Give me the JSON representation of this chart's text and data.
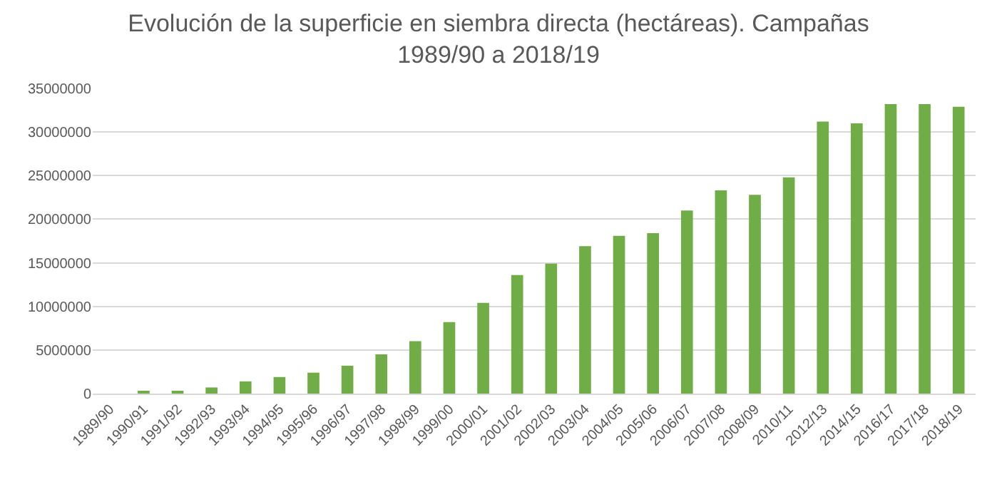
{
  "chart_data": {
    "type": "bar",
    "title": "Evolución de la superficie en siembra directa (hectáreas). Campañas\n1989/90 a 2018/19",
    "categories": [
      "1989/90",
      "1990/91",
      "1991/92",
      "1992/93",
      "1993/94",
      "1994/95",
      "1995/96",
      "1996/97",
      "1997/98",
      "1998/99",
      "1999/00",
      "2000/01",
      "2001/02",
      "2002/03",
      "2003/04",
      "2004/05",
      "2005/06",
      "2006/07",
      "2007/08",
      "2008/09",
      "2010/11",
      "2012/13",
      "2014/15",
      "2016/17",
      "2017/18",
      "2018/19"
    ],
    "values": [
      0,
      200000,
      200000,
      700000,
      1400000,
      1900000,
      2400000,
      3200000,
      4500000,
      6000000,
      8200000,
      10400000,
      13600000,
      14900000,
      16900000,
      18100000,
      18400000,
      21000000,
      23300000,
      22800000,
      24800000,
      31200000,
      31000000,
      33200000,
      33200000,
      32900000
    ],
    "color": "#70ad47",
    "ylim": [
      0,
      35000000
    ],
    "yticks": [
      0,
      5000000,
      10000000,
      15000000,
      20000000,
      25000000,
      30000000,
      35000000
    ],
    "grid": "y"
  }
}
